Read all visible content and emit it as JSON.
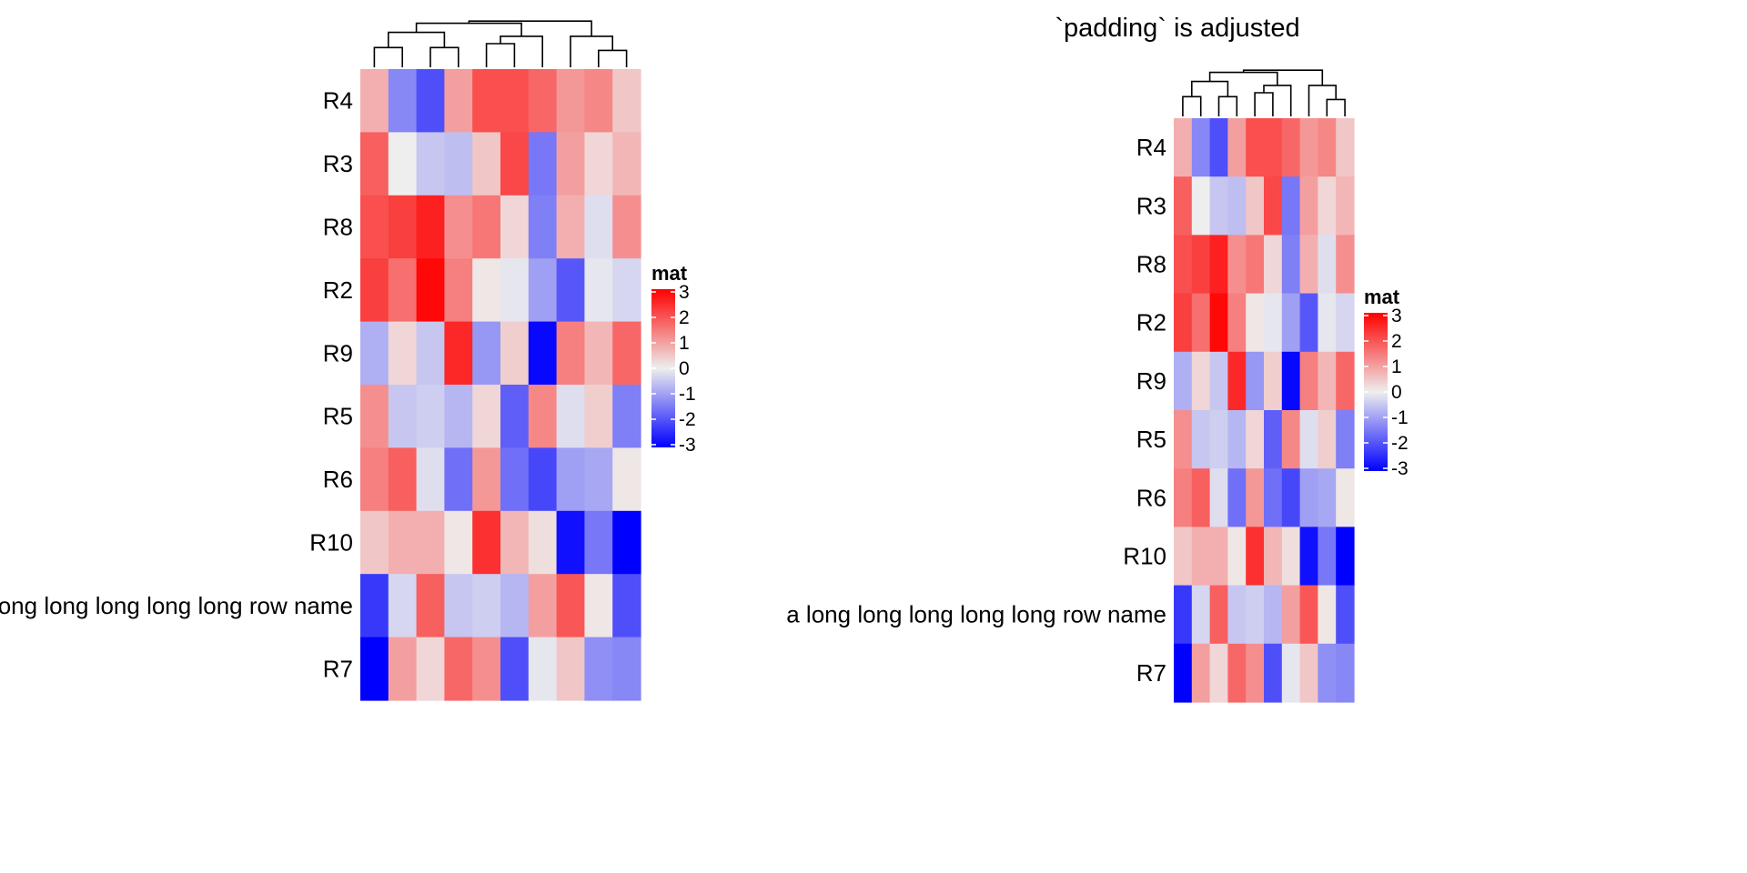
{
  "chart_data": [
    {
      "type": "heatmap",
      "title": "",
      "legend": {
        "title": "mat",
        "ticks": [
          3,
          2,
          1,
          0,
          -1,
          -2,
          -3
        ],
        "color_map": {
          "low": "#0000FF",
          "mid": "#EEEEEE",
          "high": "#FF0000"
        },
        "range": [
          -3,
          3
        ]
      },
      "rows": [
        "R4",
        "R3",
        "R8",
        "R2",
        "R9",
        "R5",
        "R6",
        "R10",
        "a long long long long long row name",
        "R7"
      ],
      "values": [
        [
          0.8,
          -1.3,
          -2.0,
          1.0,
          2.0,
          2.0,
          1.7,
          1.1,
          1.3,
          0.5
        ],
        [
          1.8,
          0.0,
          -0.5,
          -0.6,
          0.5,
          2.1,
          -1.5,
          1.0,
          0.3,
          0.7
        ],
        [
          2.0,
          2.2,
          2.6,
          1.2,
          1.5,
          0.3,
          -1.4,
          0.8,
          -0.2,
          1.2
        ],
        [
          2.2,
          1.6,
          2.9,
          1.4,
          0.1,
          -0.1,
          -1.0,
          -1.9,
          -0.1,
          -0.3
        ],
        [
          -0.8,
          0.3,
          -0.5,
          2.5,
          -1.1,
          0.4,
          -2.9,
          1.4,
          0.7,
          1.7
        ],
        [
          1.2,
          -0.5,
          -0.4,
          -0.7,
          0.3,
          -1.8,
          1.3,
          -0.2,
          0.4,
          -1.4
        ],
        [
          1.4,
          1.8,
          -0.2,
          -1.6,
          1.1,
          -1.6,
          -2.1,
          -1.0,
          -0.9,
          0.1
        ],
        [
          0.5,
          0.8,
          0.8,
          0.1,
          2.4,
          0.7,
          0.2,
          -2.8,
          -1.5,
          -3.0
        ],
        [
          -2.3,
          -0.3,
          1.8,
          -0.5,
          -0.4,
          -0.7,
          1.0,
          1.9,
          0.1,
          -2.0
        ],
        [
          -3.0,
          1.0,
          0.3,
          1.7,
          1.2,
          -2.0,
          -0.1,
          0.5,
          -1.2,
          -1.3
        ]
      ],
      "column_dendrogram": {
        "leaves": 10,
        "merges": [
          [
            0,
            2,
            20
          ],
          [
            1,
            3,
            42
          ],
          [
            4,
            6,
            54
          ],
          [
            2,
            4,
            60
          ],
          [
            3,
            5,
            59
          ],
          [
            8,
            10,
            57
          ],
          [
            7,
            8,
            88
          ],
          [
            6,
            9,
            85
          ],
          [
            1,
            7,
            88
          ]
        ]
      }
    },
    {
      "type": "heatmap",
      "title": "`padding` is adjusted",
      "legend": {
        "title": "mat",
        "ticks": [
          3,
          2,
          1,
          0,
          -1,
          -2,
          -3
        ],
        "color_map": {
          "low": "#0000FF",
          "mid": "#EEEEEE",
          "high": "#FF0000"
        },
        "range": [
          -3,
          3
        ]
      },
      "rows": [
        "R4",
        "R3",
        "R8",
        "R2",
        "R9",
        "R5",
        "R6",
        "R10",
        "a long long long long long row name",
        "R7"
      ],
      "values": [
        [
          0.8,
          -1.3,
          -2.0,
          1.0,
          2.0,
          2.0,
          1.7,
          1.1,
          1.3,
          0.5
        ],
        [
          1.8,
          0.0,
          -0.5,
          -0.6,
          0.5,
          2.1,
          -1.5,
          1.0,
          0.3,
          0.7
        ],
        [
          2.0,
          2.2,
          2.6,
          1.2,
          1.5,
          0.3,
          -1.4,
          0.8,
          -0.2,
          1.2
        ],
        [
          2.2,
          1.6,
          2.9,
          1.4,
          0.1,
          -0.1,
          -1.0,
          -1.9,
          -0.1,
          -0.3
        ],
        [
          -0.8,
          0.3,
          -0.5,
          2.5,
          -1.1,
          0.4,
          -2.9,
          1.4,
          0.7,
          1.7
        ],
        [
          1.2,
          -0.5,
          -0.4,
          -0.7,
          0.3,
          -1.8,
          1.3,
          -0.2,
          0.4,
          -1.4
        ],
        [
          1.4,
          1.8,
          -0.2,
          -1.6,
          1.1,
          -1.6,
          -2.1,
          -1.0,
          -0.9,
          0.1
        ],
        [
          0.5,
          0.8,
          0.8,
          0.1,
          2.4,
          0.7,
          0.2,
          -2.8,
          -1.5,
          -3.0
        ],
        [
          -2.3,
          -0.3,
          1.8,
          -0.5,
          -0.4,
          -0.7,
          1.0,
          1.9,
          0.1,
          -2.0
        ],
        [
          -3.0,
          1.0,
          0.3,
          1.7,
          1.2,
          -2.0,
          -0.1,
          0.5,
          -1.2,
          -1.3
        ]
      ],
      "column_dendrogram": {
        "leaves": 10,
        "merges": [
          [
            0,
            2,
            20
          ],
          [
            1,
            3,
            42
          ],
          [
            4,
            6,
            54
          ],
          [
            2,
            4,
            60
          ],
          [
            3,
            5,
            59
          ],
          [
            8,
            10,
            57
          ],
          [
            7,
            8,
            88
          ],
          [
            6,
            9,
            85
          ],
          [
            1,
            7,
            88
          ]
        ]
      }
    }
  ]
}
